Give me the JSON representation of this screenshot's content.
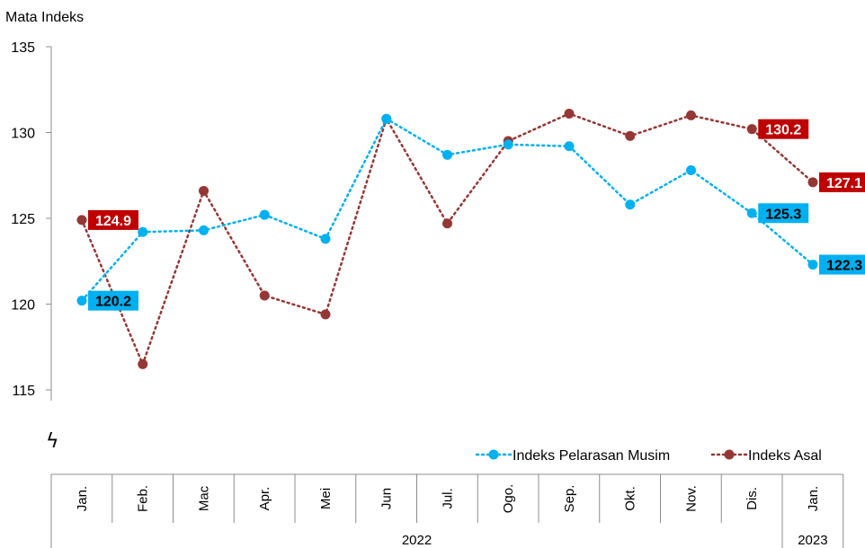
{
  "chart_data": {
    "type": "line",
    "ylabel": "Mata Indeks",
    "ylim": [
      115,
      135
    ],
    "yticks": [
      "115",
      "120",
      "125",
      "130",
      "135"
    ],
    "axis_break": true,
    "legend_position": "bottom-right",
    "categories": [
      "Jan.",
      "Feb.",
      "Mac",
      "Apr.",
      "Mei",
      "Jun",
      "Jul.",
      "Ogo.",
      "Sep.",
      "Okt.",
      "Nov.",
      "Dis.",
      "Jan."
    ],
    "year_groups": [
      {
        "label": "2022",
        "count": 12
      },
      {
        "label": "2023",
        "count": 1
      }
    ],
    "series": [
      {
        "name": "Indeks Pelarasan Musim",
        "color": "#00b0f0",
        "style": "dotted",
        "values": [
          120.2,
          124.2,
          124.3,
          125.2,
          123.8,
          130.8,
          128.7,
          129.3,
          129.2,
          125.8,
          127.8,
          125.3,
          122.3
        ],
        "labels": [
          {
            "index": 0,
            "text": "120.2"
          },
          {
            "index": 11,
            "text": "125.3"
          },
          {
            "index": 12,
            "text": "122.3"
          }
        ]
      },
      {
        "name": "Indeks Asal",
        "color": "#953735",
        "style": "dotted",
        "values": [
          124.9,
          116.5,
          126.6,
          120.5,
          119.4,
          130.8,
          124.7,
          129.5,
          131.1,
          129.8,
          131.0,
          130.2,
          127.1
        ],
        "labels": [
          {
            "index": 0,
            "text": "124.9"
          },
          {
            "index": 11,
            "text": "130.2"
          },
          {
            "index": 12,
            "text": "127.1"
          }
        ]
      }
    ],
    "label_colors": {
      "Indeks Pelarasan Musim": "#00b0f0",
      "Indeks Asal": "#c00000"
    },
    "break_symbol": "ϟ"
  }
}
